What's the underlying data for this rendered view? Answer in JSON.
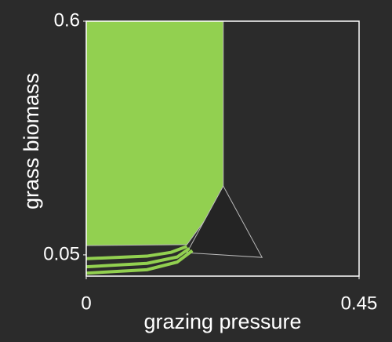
{
  "chart_data": {
    "type": "area",
    "xlabel": "grazing pressure",
    "ylabel": "grass biomass",
    "xlim": [
      0,
      0.45
    ],
    "xticks": [
      0,
      0.45
    ],
    "ylim": [
      0,
      0.6
    ],
    "yticks": [
      0.05,
      0.6
    ],
    "series": [
      {
        "color": "#92d050",
        "fill": true,
        "x": [
          0,
          0.226,
          0.226,
          0.2,
          0.166,
          0
        ],
        "values": [
          0.6,
          0.6,
          0.212,
          0.14,
          0.074,
          0.072
        ]
      },
      {
        "color": "#242424",
        "fill": true,
        "x": [
          0.226,
          0.166,
          0.29
        ],
        "values": [
          0.212,
          0.055,
          0.044
        ]
      },
      {
        "color": "#92d050",
        "fill": false,
        "x": [
          0,
          0.1,
          0.14,
          0.166
        ],
        "values": [
          0.041,
          0.047,
          0.056,
          0.07
        ]
      },
      {
        "color": "#92d050",
        "fill": false,
        "x": [
          0,
          0.1,
          0.15,
          0.17
        ],
        "values": [
          0.022,
          0.03,
          0.045,
          0.065
        ]
      },
      {
        "color": "#92d050",
        "fill": false,
        "x": [
          0,
          0.1,
          0.15,
          0.175
        ],
        "values": [
          0.007,
          0.015,
          0.033,
          0.06
        ]
      }
    ]
  }
}
